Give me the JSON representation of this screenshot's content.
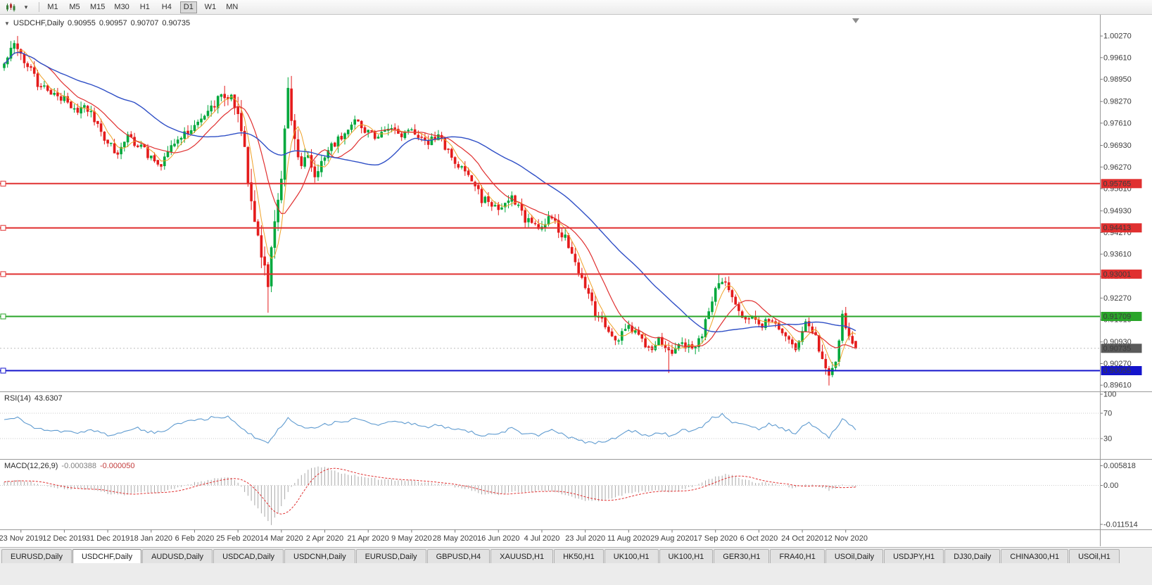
{
  "toolbar": {
    "timeframes": [
      "M1",
      "M5",
      "M15",
      "M30",
      "H1",
      "H4",
      "D1",
      "W1",
      "MN"
    ],
    "active_timeframe": "D1",
    "dropdown_glyph": "▾",
    "chart_type_icon": "candlestick-chart-icon"
  },
  "window": {
    "collapse_glyph": "▼",
    "title_symbol": "USDCHF,Daily",
    "quote": {
      "open": "0.90955",
      "high": "0.90957",
      "low": "0.90707",
      "close": "0.90735"
    }
  },
  "main_pane": {
    "price_labels": [
      "1.00270",
      "0.99610",
      "0.98950",
      "0.98270",
      "0.97610",
      "0.96930",
      "0.96270",
      "0.95610",
      "0.94930",
      "0.94270",
      "0.93610",
      "0.92930",
      "0.92270",
      "0.91610",
      "0.90930",
      "0.90270",
      "0.89610"
    ],
    "hlines": [
      {
        "price": "0.95765",
        "value": 0.95765,
        "color": "#e03030",
        "width": 2
      },
      {
        "price": "0.94413",
        "value": 0.94413,
        "color": "#e03030",
        "width": 2
      },
      {
        "price": "0.93001",
        "value": 0.93001,
        "color": "#e03030",
        "width": 2
      },
      {
        "price": "0.91709",
        "value": 0.91709,
        "color": "#2aa52a",
        "width": 2
      },
      {
        "price": "0.90055",
        "value": 0.90055,
        "color": "#1414cc",
        "width": 2
      }
    ],
    "current_price": {
      "text": "0.90735",
      "value": 0.90735,
      "badge_color": "#5a5a5a"
    }
  },
  "rsi_pane": {
    "name": "RSI(14)",
    "value": "43.6307",
    "axis": [
      "100",
      "70",
      "30"
    ],
    "levels": [
      70,
      30
    ]
  },
  "macd_pane": {
    "name": "MACD(12,26,9)",
    "macd_value": "-0.000388",
    "signal_value": "-0.000050",
    "axis": [
      {
        "text": "0.005818",
        "value": 0.005818
      },
      {
        "text": "0.00",
        "value": 0
      },
      {
        "text": "-0.011514",
        "value": -0.011514
      }
    ]
  },
  "time_axis": {
    "labels": [
      "23 Nov 2019",
      "12 Dec 2019",
      "31 Dec 2019",
      "18 Jan 2020",
      "6 Feb 2020",
      "25 Feb 2020",
      "14 Mar 2020",
      "2 Apr 2020",
      "21 Apr 2020",
      "9 May 2020",
      "28 May 2020",
      "16 Jun 2020",
      "4 Jul 2020",
      "23 Jul 2020",
      "11 Aug 2020",
      "29 Aug 2020",
      "17 Sep 2020",
      "6 Oct 2020",
      "24 Oct 2020",
      "12 Nov 2020"
    ],
    "indices": [
      5,
      18,
      31,
      44,
      57,
      70,
      83,
      96,
      109,
      122,
      135,
      148,
      161,
      174,
      187,
      200,
      213,
      226,
      239,
      252
    ]
  },
  "tabs": [
    {
      "label": "EURUSD,Daily",
      "active": false
    },
    {
      "label": "USDCHF,Daily",
      "active": true
    },
    {
      "label": "AUDUSD,Daily",
      "active": false
    },
    {
      "label": "USDCAD,Daily",
      "active": false
    },
    {
      "label": "USDCNH,Daily",
      "active": false
    },
    {
      "label": "EURUSD,Daily",
      "active": false
    },
    {
      "label": "GBPUSD,H4",
      "active": false
    },
    {
      "label": "XAUUSD,H1",
      "active": false
    },
    {
      "label": "HK50,H1",
      "active": false
    },
    {
      "label": "UK100,H1",
      "active": false
    },
    {
      "label": "UK100,H1",
      "active": false
    },
    {
      "label": "GER30,H1",
      "active": false
    },
    {
      "label": "FRA40,H1",
      "active": false
    },
    {
      "label": "USOil,Daily",
      "active": false
    },
    {
      "label": "USDJPY,H1",
      "active": false
    },
    {
      "label": "DJ30,Daily",
      "active": false
    },
    {
      "label": "CHINA300,H1",
      "active": false
    },
    {
      "label": "USOil,H1",
      "active": false
    }
  ],
  "chart_data": {
    "type": "candlestick",
    "symbol": "USDCHF",
    "timeframe": "Daily",
    "bars": 256,
    "x_range": [
      "23 Nov 2019",
      "20 Nov 2020"
    ],
    "y_range": [
      0.8942,
      1.0081
    ],
    "seed": 20201120,
    "colors": {
      "up": "#00a83c",
      "down": "#e41b1b",
      "ma_fast": "#efa126",
      "ma_mid": "#e03030",
      "ma_slow": "#2f4fc6",
      "rsi": "#5f9bd0",
      "macd_hist": "#a9a9a9",
      "macd_signal": "#e03030"
    },
    "ma_periods": {
      "fast": 5,
      "mid": 13,
      "slow": 40
    },
    "close_anchors": [
      [
        0,
        0.995
      ],
      [
        3,
        0.999
      ],
      [
        7,
        0.994
      ],
      [
        10,
        0.988
      ],
      [
        14,
        0.9858
      ],
      [
        18,
        0.9838
      ],
      [
        21,
        0.98
      ],
      [
        24,
        0.9815
      ],
      [
        28,
        0.976
      ],
      [
        31,
        0.97
      ],
      [
        34,
        0.9665
      ],
      [
        37,
        0.9715
      ],
      [
        41,
        0.969
      ],
      [
        44,
        0.9655
      ],
      [
        47,
        0.9635
      ],
      [
        50,
        0.9695
      ],
      [
        53,
        0.972
      ],
      [
        57,
        0.9755
      ],
      [
        61,
        0.979
      ],
      [
        65,
        0.9845
      ],
      [
        67,
        0.9855
      ],
      [
        70,
        0.9775
      ],
      [
        72,
        0.966
      ],
      [
        74,
        0.955
      ],
      [
        76,
        0.942
      ],
      [
        78,
        0.93
      ],
      [
        79,
        0.9245
      ],
      [
        81,
        0.948
      ],
      [
        83,
        0.96
      ],
      [
        85,
        0.984
      ],
      [
        87,
        0.973
      ],
      [
        89,
        0.963
      ],
      [
        91,
        0.968
      ],
      [
        93,
        0.959
      ],
      [
        96,
        0.966
      ],
      [
        99,
        0.97
      ],
      [
        103,
        0.9745
      ],
      [
        106,
        0.977
      ],
      [
        109,
        0.973
      ],
      [
        112,
        0.9715
      ],
      [
        116,
        0.975
      ],
      [
        119,
        0.9725
      ],
      [
        122,
        0.973
      ],
      [
        126,
        0.97
      ],
      [
        130,
        0.972
      ],
      [
        135,
        0.9645
      ],
      [
        139,
        0.9615
      ],
      [
        143,
        0.953
      ],
      [
        148,
        0.9505
      ],
      [
        152,
        0.954
      ],
      [
        156,
        0.9465
      ],
      [
        161,
        0.9445
      ],
      [
        164,
        0.9475
      ],
      [
        168,
        0.9405
      ],
      [
        172,
        0.931
      ],
      [
        174,
        0.9255
      ],
      [
        177,
        0.9185
      ],
      [
        180,
        0.915
      ],
      [
        183,
        0.9095
      ],
      [
        187,
        0.9135
      ],
      [
        190,
        0.911
      ],
      [
        193,
        0.9065
      ],
      [
        196,
        0.9105
      ],
      [
        200,
        0.905
      ],
      [
        203,
        0.9095
      ],
      [
        206,
        0.9065
      ],
      [
        209,
        0.9105
      ],
      [
        213,
        0.927
      ],
      [
        215,
        0.9285
      ],
      [
        218,
        0.922
      ],
      [
        221,
        0.918
      ],
      [
        224,
        0.9165
      ],
      [
        226,
        0.9135
      ],
      [
        229,
        0.9165
      ],
      [
        232,
        0.914
      ],
      [
        235,
        0.91
      ],
      [
        237,
        0.906
      ],
      [
        239,
        0.913
      ],
      [
        241,
        0.9155
      ],
      [
        243,
        0.9105
      ],
      [
        245,
        0.9045
      ],
      [
        247,
        0.8995
      ],
      [
        249,
        0.905
      ],
      [
        251,
        0.9165
      ],
      [
        253,
        0.912
      ],
      [
        255,
        0.90735
      ]
    ],
    "vol_anchors": [
      [
        0,
        1.3
      ],
      [
        15,
        1
      ],
      [
        40,
        0.9
      ],
      [
        60,
        1
      ],
      [
        66,
        1.5
      ],
      [
        70,
        2.2
      ],
      [
        79,
        2.6
      ],
      [
        86,
        2.2
      ],
      [
        90,
        1.6
      ],
      [
        96,
        1.2
      ],
      [
        110,
        0.9
      ],
      [
        135,
        0.9
      ],
      [
        148,
        1
      ],
      [
        160,
        1
      ],
      [
        170,
        1.3
      ],
      [
        178,
        1.2
      ],
      [
        190,
        0.9
      ],
      [
        205,
        1
      ],
      [
        212,
        1.3
      ],
      [
        220,
        1
      ],
      [
        232,
        0.9
      ],
      [
        242,
        1.2
      ],
      [
        248,
        1.5
      ],
      [
        252,
        1.2
      ],
      [
        255,
        0.7
      ]
    ],
    "overrides": {
      "4": {
        "h": 1.0027
      },
      "79": {
        "l": 0.9182
      },
      "85": {
        "h": 0.9901
      },
      "199": {
        "l": 0.8998
      },
      "214": {
        "h": 0.93
      },
      "247": {
        "l": 0.896
      },
      "251": {
        "h": 0.919
      },
      "255": {
        "o": 0.90955,
        "h": 0.90957,
        "l": 0.90707,
        "c": 0.90735
      }
    },
    "rsi_anchors": [
      [
        0,
        58
      ],
      [
        4,
        64
      ],
      [
        8,
        50
      ],
      [
        12,
        44
      ],
      [
        18,
        42
      ],
      [
        22,
        38
      ],
      [
        26,
        45
      ],
      [
        31,
        36
      ],
      [
        35,
        40
      ],
      [
        39,
        48
      ],
      [
        44,
        40
      ],
      [
        48,
        42
      ],
      [
        52,
        55
      ],
      [
        57,
        58
      ],
      [
        62,
        63
      ],
      [
        67,
        66
      ],
      [
        70,
        50
      ],
      [
        73,
        38
      ],
      [
        76,
        30
      ],
      [
        79,
        24
      ],
      [
        81,
        38
      ],
      [
        83,
        48
      ],
      [
        85,
        62
      ],
      [
        88,
        50
      ],
      [
        91,
        46
      ],
      [
        94,
        50
      ],
      [
        98,
        54
      ],
      [
        102,
        58
      ],
      [
        106,
        62
      ],
      [
        109,
        54
      ],
      [
        113,
        52
      ],
      [
        117,
        57
      ],
      [
        122,
        54
      ],
      [
        126,
        47
      ],
      [
        130,
        52
      ],
      [
        135,
        44
      ],
      [
        139,
        42
      ],
      [
        143,
        34
      ],
      [
        148,
        38
      ],
      [
        152,
        46
      ],
      [
        156,
        37
      ],
      [
        161,
        36
      ],
      [
        164,
        44
      ],
      [
        168,
        34
      ],
      [
        172,
        28
      ],
      [
        174,
        25
      ],
      [
        177,
        23
      ],
      [
        180,
        27
      ],
      [
        183,
        30
      ],
      [
        187,
        42
      ],
      [
        190,
        40
      ],
      [
        193,
        33
      ],
      [
        196,
        40
      ],
      [
        200,
        34
      ],
      [
        203,
        45
      ],
      [
        206,
        42
      ],
      [
        209,
        50
      ],
      [
        212,
        62
      ],
      [
        215,
        68
      ],
      [
        218,
        56
      ],
      [
        221,
        52
      ],
      [
        224,
        50
      ],
      [
        226,
        46
      ],
      [
        229,
        53
      ],
      [
        232,
        48
      ],
      [
        235,
        42
      ],
      [
        237,
        38
      ],
      [
        239,
        52
      ],
      [
        241,
        55
      ],
      [
        243,
        48
      ],
      [
        245,
        40
      ],
      [
        247,
        33
      ],
      [
        249,
        45
      ],
      [
        251,
        60
      ],
      [
        253,
        52
      ],
      [
        255,
        43.63
      ]
    ],
    "macd_anchors": [
      [
        0,
        0.001
      ],
      [
        5,
        0.0016
      ],
      [
        10,
        0.0006
      ],
      [
        15,
        -0.0006
      ],
      [
        20,
        -0.0012
      ],
      [
        25,
        -0.001
      ],
      [
        31,
        -0.0024
      ],
      [
        36,
        -0.0028
      ],
      [
        41,
        -0.002
      ],
      [
        46,
        -0.0022
      ],
      [
        51,
        -0.0008
      ],
      [
        57,
        0.0008
      ],
      [
        62,
        0.0018
      ],
      [
        67,
        0.0026
      ],
      [
        70,
        0.0008
      ],
      [
        73,
        -0.003
      ],
      [
        76,
        -0.007
      ],
      [
        79,
        -0.0105
      ],
      [
        80,
        -0.0115
      ],
      [
        82,
        -0.008
      ],
      [
        85,
        -0.002
      ],
      [
        88,
        0.002
      ],
      [
        91,
        0.0045
      ],
      [
        94,
        0.0058
      ],
      [
        97,
        0.005
      ],
      [
        101,
        0.0036
      ],
      [
        105,
        0.003
      ],
      [
        109,
        0.0024
      ],
      [
        113,
        0.0016
      ],
      [
        117,
        0.0016
      ],
      [
        122,
        0.0013
      ],
      [
        126,
        0.0008
      ],
      [
        130,
        0.0006
      ],
      [
        135,
        -0.0004
      ],
      [
        139,
        -0.0012
      ],
      [
        143,
        -0.0024
      ],
      [
        148,
        -0.003
      ],
      [
        152,
        -0.0018
      ],
      [
        156,
        -0.002
      ],
      [
        161,
        -0.0014
      ],
      [
        165,
        -0.002
      ],
      [
        169,
        -0.0032
      ],
      [
        174,
        -0.0044
      ],
      [
        178,
        -0.0046
      ],
      [
        183,
        -0.0036
      ],
      [
        187,
        -0.0022
      ],
      [
        191,
        -0.0018
      ],
      [
        196,
        -0.0014
      ],
      [
        200,
        -0.002
      ],
      [
        204,
        -0.001
      ],
      [
        209,
        0.0008
      ],
      [
        213,
        0.0026
      ],
      [
        216,
        0.0034
      ],
      [
        220,
        0.0024
      ],
      [
        224,
        0.001
      ],
      [
        228,
        0.0008
      ],
      [
        232,
        0.0002
      ],
      [
        236,
        -0.0008
      ],
      [
        239,
        0
      ],
      [
        242,
        0.0004
      ],
      [
        245,
        -0.0006
      ],
      [
        247,
        -0.0014
      ],
      [
        249,
        -0.001
      ],
      [
        251,
        0.0002
      ],
      [
        253,
        0
      ],
      [
        255,
        -0.000388
      ]
    ],
    "indicators": {
      "rsi_current": 43.6307,
      "macd_current": -0.000388,
      "macd_signal_current": -5e-05
    }
  }
}
